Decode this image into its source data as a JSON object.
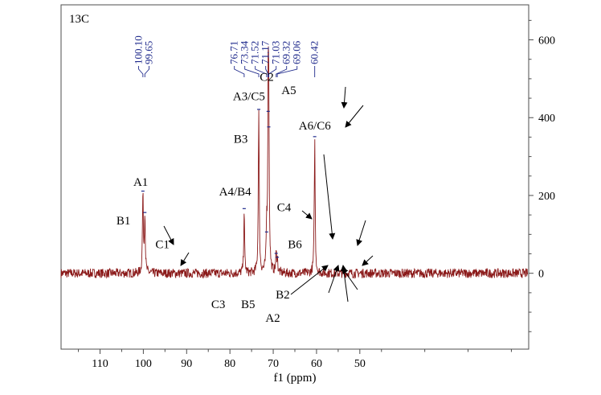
{
  "chart_data": {
    "type": "line",
    "title": "13C",
    "xlabel": "f1 (ppm)",
    "ylabel": "",
    "xlim": [
      119,
      11
    ],
    "ylim": [
      -195,
      690
    ],
    "x_reversed": true,
    "x_ticks": [
      "110",
      "100",
      "90",
      "80",
      "70",
      "60",
      "50"
    ],
    "y_ticks": [
      "600",
      "400",
      "200",
      "0"
    ],
    "y_axis_side": "right",
    "grid": false,
    "legend": "none",
    "colors": {
      "spectrum": "#8b1a1a",
      "peak_label": "#1f2a8c",
      "frame": "#4d4d4d",
      "annotation": "#000000"
    },
    "peak_labels": [
      "100.10",
      "99.65",
      "76.71",
      "73.34",
      "71.52",
      "71.17",
      "71.03",
      "69.32",
      "69.06",
      "60.42"
    ],
    "series": [
      {
        "values_note": "",
        "peaks": [
          {
            "x": 100.1,
            "y": 205
          },
          {
            "x": 99.65,
            "y": 150
          },
          {
            "x": 76.71,
            "y": 160
          },
          {
            "x": 73.34,
            "y": 415
          },
          {
            "x": 71.52,
            "y": 100
          },
          {
            "x": 71.17,
            "y": 410
          },
          {
            "x": 71.03,
            "y": 370
          },
          {
            "x": 69.32,
            "y": 45
          },
          {
            "x": 69.06,
            "y": 35
          },
          {
            "x": 60.42,
            "y": 345
          }
        ],
        "baseline": 0,
        "noise_amplitude": 12
      }
    ],
    "annotations": [
      {
        "text": "A1",
        "x": 100.6,
        "y": 225
      },
      {
        "text": "B1",
        "x": 104.6,
        "y": 125
      },
      {
        "text": "C1",
        "x": 95.6,
        "y": 65
      },
      {
        "text": "A4/B4",
        "x": 78.8,
        "y": 200
      },
      {
        "text": "B3",
        "x": 77.5,
        "y": 335
      },
      {
        "text": "A3/C5",
        "x": 75.6,
        "y": 445
      },
      {
        "text": "C2",
        "x": 71.5,
        "y": 495
      },
      {
        "text": "A5",
        "x": 66.4,
        "y": 460
      },
      {
        "text": "A6/C6",
        "x": 60.4,
        "y": 370
      },
      {
        "text": "C4",
        "x": 67.5,
        "y": 160
      },
      {
        "text": "B6",
        "x": 65.0,
        "y": 65
      },
      {
        "text": "C3",
        "x": 82.7,
        "y": -90
      },
      {
        "text": "B5",
        "x": 75.8,
        "y": -90
      },
      {
        "text": "B2",
        "x": 67.8,
        "y": -65
      },
      {
        "text": "A2",
        "x": 70.1,
        "y": -125
      }
    ]
  }
}
